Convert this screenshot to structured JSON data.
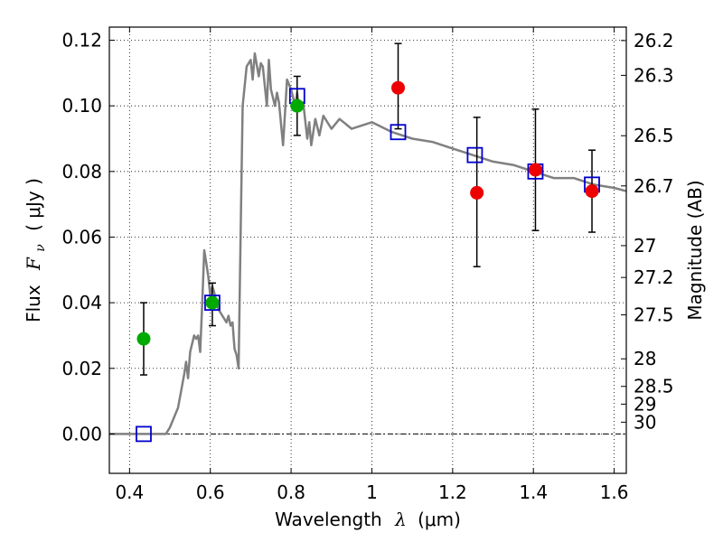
{
  "chart_data": {
    "type": "scatter",
    "xlabel": "Wavelength",
    "xlabel_symbol": "λ",
    "xlabel_unit": "(μm)",
    "ylabel": "Flux",
    "ylabel_symbol": "F",
    "ylabel_subscript": "ν",
    "ylabel_unit": "( μJy )",
    "y2label": "Magnitude (AB)",
    "xlim": [
      0.35,
      1.63
    ],
    "ylim": [
      -0.012,
      0.124
    ],
    "grid": true,
    "x_ticks": [
      0.4,
      0.6,
      0.8,
      1.0,
      1.2,
      1.4,
      1.6
    ],
    "x_tick_labels": [
      "0.4",
      "0.6",
      "0.8",
      "1",
      "1.2",
      "1.4",
      "1.6"
    ],
    "y_ticks": [
      0.0,
      0.02,
      0.04,
      0.06,
      0.08,
      0.1,
      0.12
    ],
    "y_tick_labels": [
      "0.00",
      "0.02",
      "0.04",
      "0.06",
      "0.08",
      "0.10",
      "0.12"
    ],
    "mag_ticks": [
      {
        "label": "26.2",
        "flux": 0.1199
      },
      {
        "label": "26.3",
        "flux": 0.1093
      },
      {
        "label": "26.5",
        "flux": 0.0909
      },
      {
        "label": "26.7",
        "flux": 0.0756
      },
      {
        "label": "27",
        "flux": 0.0574
      },
      {
        "label": "27.2",
        "flux": 0.0477
      },
      {
        "label": "27.5",
        "flux": 0.0363
      },
      {
        "label": "28",
        "flux": 0.0229
      },
      {
        "label": "28.5",
        "flux": 0.0145
      },
      {
        "label": "29",
        "flux": 0.0091
      },
      {
        "label": "30",
        "flux": 0.0036
      }
    ],
    "series": [
      {
        "kind": "sed_model_line",
        "color": "#808080",
        "x": [
          0.35,
          0.49,
          0.5,
          0.52,
          0.535,
          0.54,
          0.545,
          0.55,
          0.56,
          0.565,
          0.57,
          0.575,
          0.58,
          0.585,
          0.59,
          0.595,
          0.6,
          0.605,
          0.61,
          0.615,
          0.62,
          0.63,
          0.64,
          0.645,
          0.65,
          0.655,
          0.66,
          0.665,
          0.67,
          0.675,
          0.68,
          0.69,
          0.7,
          0.705,
          0.71,
          0.72,
          0.725,
          0.73,
          0.74,
          0.745,
          0.75,
          0.76,
          0.765,
          0.77,
          0.78,
          0.79,
          0.8,
          0.81,
          0.815,
          0.82,
          0.83,
          0.84,
          0.845,
          0.85,
          0.86,
          0.87,
          0.88,
          0.9,
          0.92,
          0.95,
          1.0,
          1.05,
          1.1,
          1.15,
          1.2,
          1.25,
          1.3,
          1.35,
          1.4,
          1.45,
          1.5,
          1.55,
          1.6,
          1.63
        ],
        "y": [
          0.0,
          0.0,
          0.002,
          0.008,
          0.018,
          0.022,
          0.017,
          0.025,
          0.03,
          0.029,
          0.03,
          0.025,
          0.04,
          0.056,
          0.052,
          0.048,
          0.042,
          0.045,
          0.043,
          0.04,
          0.038,
          0.036,
          0.034,
          0.036,
          0.033,
          0.034,
          0.026,
          0.024,
          0.02,
          0.06,
          0.1,
          0.112,
          0.114,
          0.108,
          0.116,
          0.109,
          0.113,
          0.112,
          0.1,
          0.114,
          0.105,
          0.1,
          0.104,
          0.101,
          0.088,
          0.108,
          0.105,
          0.1,
          0.104,
          0.099,
          0.101,
          0.09,
          0.095,
          0.088,
          0.096,
          0.091,
          0.097,
          0.093,
          0.096,
          0.093,
          0.095,
          0.092,
          0.09,
          0.089,
          0.087,
          0.085,
          0.083,
          0.082,
          0.08,
          0.078,
          0.078,
          0.076,
          0.075,
          0.074
        ]
      },
      {
        "kind": "model_flux_squares",
        "color": "#0000cc",
        "x": [
          0.435,
          0.605,
          0.815,
          1.065,
          1.255,
          1.405,
          1.545
        ],
        "y": [
          0.0,
          0.04,
          0.103,
          0.092,
          0.085,
          0.08,
          0.076
        ]
      },
      {
        "kind": "observed_points_green",
        "color": "#00aa00",
        "x": [
          0.435,
          0.605,
          0.815
        ],
        "y": [
          0.029,
          0.04,
          0.1
        ],
        "err_low": [
          0.018,
          0.033,
          0.091
        ],
        "err_high": [
          0.04,
          0.046,
          0.109
        ]
      },
      {
        "kind": "observed_points_red",
        "color": "#ee0000",
        "x": [
          1.065,
          1.26,
          1.405,
          1.545
        ],
        "y": [
          0.1055,
          0.0735,
          0.0805,
          0.074
        ],
        "err_low": [
          0.093,
          0.051,
          0.062,
          0.0615
        ],
        "err_high": [
          0.119,
          0.0965,
          0.099,
          0.0865
        ]
      }
    ]
  }
}
